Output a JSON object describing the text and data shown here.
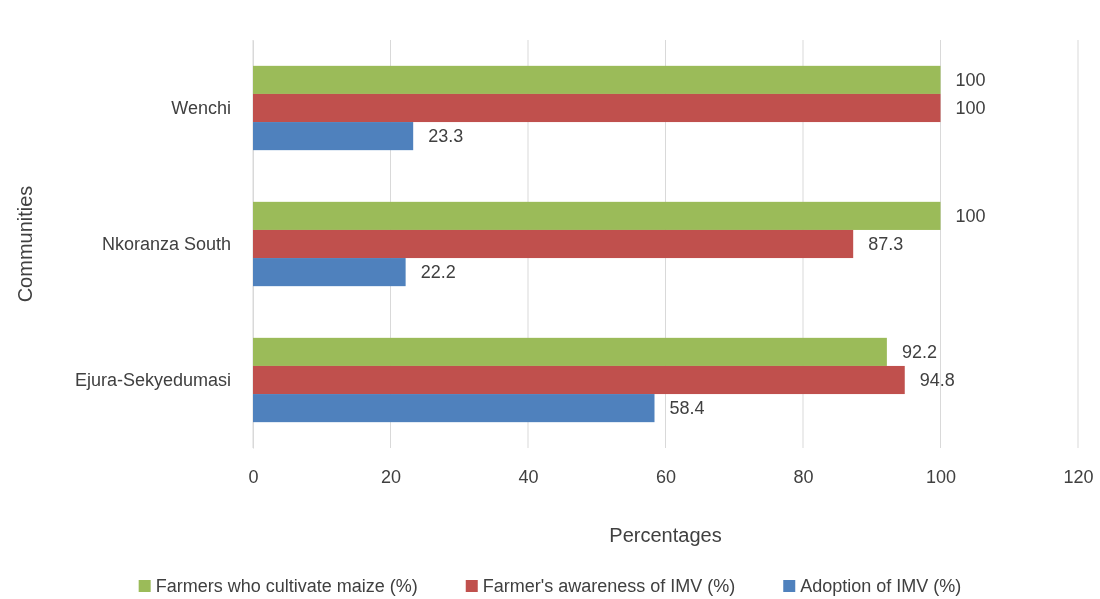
{
  "chart_data": {
    "type": "bar",
    "orientation": "horizontal",
    "xlabel": "Percentages",
    "ylabel": "Communities",
    "categories": [
      "Wenchi",
      "Nkoranza South",
      "Ejura-Sekyedumasi"
    ],
    "series": [
      {
        "name": "Farmers who cultivate maize (%)",
        "color": "#9bbb59",
        "values": [
          100,
          100,
          92.2
        ]
      },
      {
        "name": "Farmer's awareness of IMV (%)",
        "color": "#c0504d",
        "values": [
          100,
          87.3,
          94.8
        ]
      },
      {
        "name": "Adoption of IMV (%)",
        "color": "#4f81bd",
        "values": [
          23.3,
          22.2,
          58.4
        ]
      }
    ],
    "xlim": [
      0,
      120
    ],
    "xticks": [
      0,
      20,
      40,
      60,
      80,
      100,
      120
    ],
    "grid": "x",
    "legend": "bottom",
    "data_labels": true
  }
}
